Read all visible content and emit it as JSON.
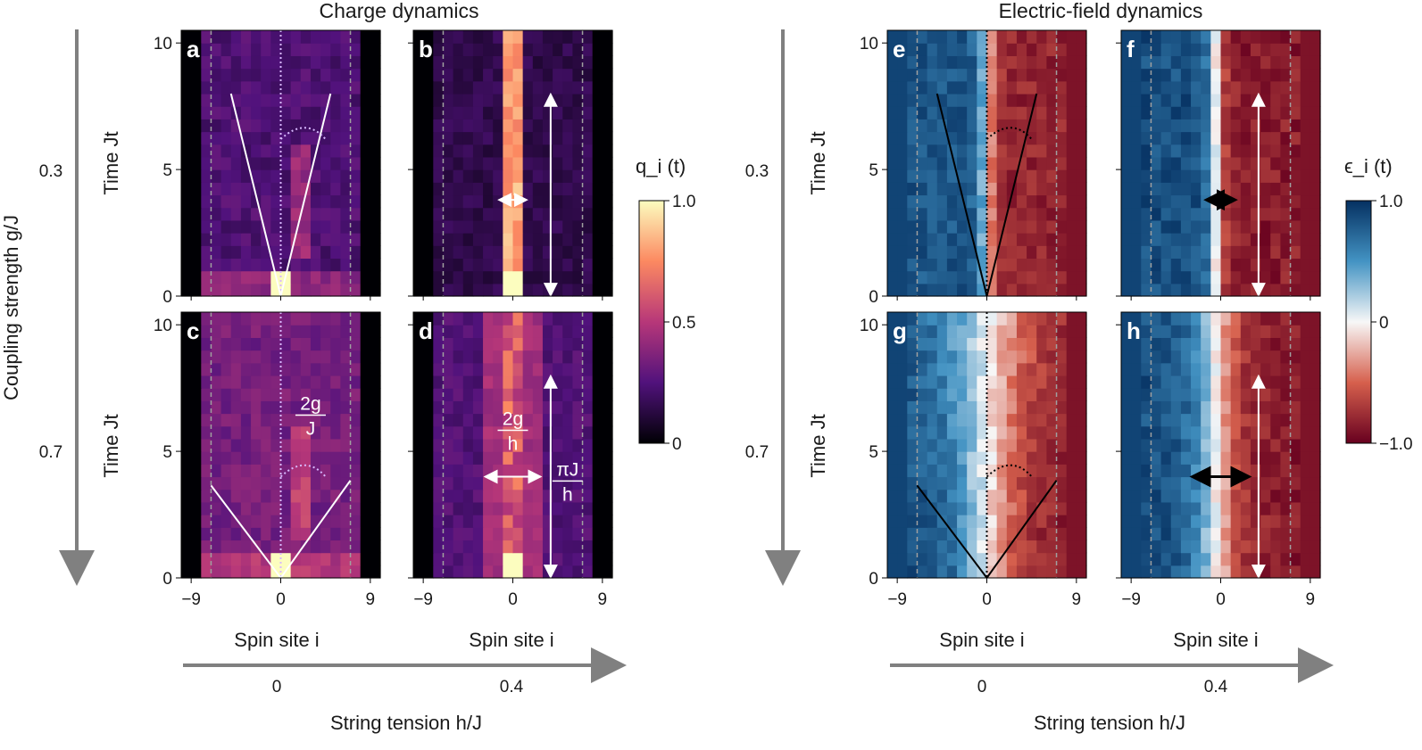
{
  "figure": {
    "left_title": "Charge dynamics",
    "right_title": "Electric-field dynamics",
    "coupling_axis_label": "Coupling strength g/J",
    "coupling_values": [
      "0.3",
      "0.7"
    ],
    "tension_axis_label": "String tension h/J",
    "tension_values": [
      "0",
      "0.4"
    ],
    "y_axis_label": "Time Jt",
    "x_axis_label": "Spin site i",
    "x_ticks": [
      "−9",
      "0",
      "9"
    ],
    "y_ticks": [
      "0",
      "5",
      "10"
    ]
  },
  "colorbars": {
    "charge": {
      "label": "q_i (t)",
      "ticks": [
        "1.0",
        "0.5",
        "0"
      ],
      "colors": [
        "#fcfdbf",
        "#fc8961",
        "#b73779",
        "#51127c",
        "#000004"
      ]
    },
    "field": {
      "label": "ϵ_i (t)",
      "ticks": [
        "1.0",
        "0",
        "−1.0"
      ],
      "colors": [
        "#053061",
        "#4393c3",
        "#f7f7f7",
        "#d6604d",
        "#67001f"
      ]
    }
  },
  "panels": [
    {
      "letter": "a",
      "kind": "charge",
      "g": "0.3",
      "h": "0"
    },
    {
      "letter": "b",
      "kind": "charge",
      "g": "0.3",
      "h": "0.4"
    },
    {
      "letter": "c",
      "kind": "charge",
      "g": "0.7",
      "h": "0",
      "annotation": {
        "num": "2g",
        "den": "J"
      }
    },
    {
      "letter": "d",
      "kind": "charge",
      "g": "0.7",
      "h": "0.4",
      "annotation": {
        "num": "2g",
        "den": "h"
      },
      "annotation2": {
        "num": "πJ",
        "den": "h"
      }
    },
    {
      "letter": "e",
      "kind": "field",
      "g": "0.3",
      "h": "0"
    },
    {
      "letter": "f",
      "kind": "field",
      "g": "0.3",
      "h": "0.4"
    },
    {
      "letter": "g",
      "kind": "field",
      "g": "0.7",
      "h": "0"
    },
    {
      "letter": "h",
      "kind": "field",
      "g": "0.7",
      "h": "0.4"
    }
  ],
  "chart_data": {
    "type": "heatmap",
    "x_range": [
      -10,
      10
    ],
    "y_range": [
      0,
      10.5
    ],
    "x_ticks": [
      -9,
      0,
      9
    ],
    "y_ticks": [
      0,
      5,
      10
    ],
    "boundary_sites": [
      -7,
      7
    ],
    "charge_colorbar_range": [
      0,
      1
    ],
    "field_colorbar_range": [
      -1,
      1
    ],
    "light_cone_slope_g03": 1.2,
    "light_cone_slope_g07": 1.7
  }
}
